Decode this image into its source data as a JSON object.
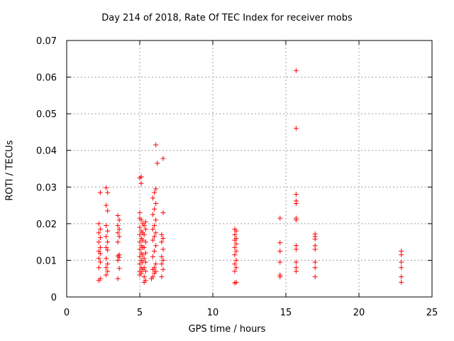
{
  "chart_data": {
    "type": "scatter",
    "title": "Day 214 of 2018, Rate Of TEC Index for receiver mobs",
    "xlabel": "GPS time / hours",
    "ylabel": "ROTI / TECUs",
    "xlim": [
      0,
      25
    ],
    "ylim": [
      0,
      0.07
    ],
    "xticks": [
      0,
      5,
      10,
      15,
      20,
      25
    ],
    "yticks": [
      0,
      0.01,
      0.02,
      0.03,
      0.04,
      0.05,
      0.06,
      0.07
    ],
    "xtick_labels": [
      "0",
      "5",
      "10",
      "15",
      "20",
      "25"
    ],
    "ytick_labels": [
      "0",
      "0.01",
      "0.02",
      "0.03",
      "0.04",
      "0.05",
      "0.06",
      "0.07"
    ],
    "grid": true,
    "marker": "plus",
    "marker_color": "#ff0000",
    "series": [
      {
        "points": [
          [
            2.2,
            0.0045
          ],
          [
            2.3,
            0.005
          ],
          [
            2.2,
            0.008
          ],
          [
            2.3,
            0.0095
          ],
          [
            2.2,
            0.0105
          ],
          [
            2.3,
            0.0118
          ],
          [
            2.2,
            0.0125
          ],
          [
            2.3,
            0.0135
          ],
          [
            2.2,
            0.015
          ],
          [
            2.3,
            0.0162
          ],
          [
            2.2,
            0.0175
          ],
          [
            2.3,
            0.0185
          ],
          [
            2.2,
            0.02
          ],
          [
            2.3,
            0.0285
          ],
          [
            2.7,
            0.006
          ],
          [
            2.8,
            0.007
          ],
          [
            2.7,
            0.008
          ],
          [
            2.8,
            0.009
          ],
          [
            2.7,
            0.0105
          ],
          [
            2.8,
            0.0128
          ],
          [
            2.7,
            0.0135
          ],
          [
            2.8,
            0.015
          ],
          [
            2.7,
            0.0165
          ],
          [
            2.8,
            0.018
          ],
          [
            2.7,
            0.0195
          ],
          [
            2.8,
            0.0235
          ],
          [
            2.7,
            0.025
          ],
          [
            2.8,
            0.0285
          ],
          [
            2.7,
            0.0298
          ],
          [
            3.5,
            0.005
          ],
          [
            3.6,
            0.0078
          ],
          [
            3.5,
            0.01
          ],
          [
            3.6,
            0.0108
          ],
          [
            3.5,
            0.0112
          ],
          [
            3.6,
            0.0115
          ],
          [
            3.5,
            0.015
          ],
          [
            3.6,
            0.0165
          ],
          [
            3.5,
            0.0175
          ],
          [
            3.6,
            0.0185
          ],
          [
            3.5,
            0.0195
          ],
          [
            3.6,
            0.021
          ],
          [
            3.5,
            0.0222
          ],
          [
            5.0,
            0.006
          ],
          [
            5.1,
            0.0065
          ],
          [
            5.0,
            0.007
          ],
          [
            5.2,
            0.0075
          ],
          [
            5.1,
            0.008
          ],
          [
            5.0,
            0.009
          ],
          [
            5.2,
            0.0095
          ],
          [
            5.1,
            0.01
          ],
          [
            5.0,
            0.011
          ],
          [
            5.2,
            0.0115
          ],
          [
            5.1,
            0.012
          ],
          [
            5.0,
            0.013
          ],
          [
            5.2,
            0.0135
          ],
          [
            5.1,
            0.014
          ],
          [
            5.0,
            0.015
          ],
          [
            5.2,
            0.0155
          ],
          [
            5.1,
            0.016
          ],
          [
            5.0,
            0.017
          ],
          [
            5.2,
            0.0175
          ],
          [
            5.1,
            0.018
          ],
          [
            5.0,
            0.019
          ],
          [
            5.2,
            0.02
          ],
          [
            5.1,
            0.021
          ],
          [
            5.0,
            0.0215
          ],
          [
            5.0,
            0.023
          ],
          [
            5.1,
            0.031
          ],
          [
            5.0,
            0.0325
          ],
          [
            5.1,
            0.0328
          ],
          [
            5.3,
            0.004
          ],
          [
            5.4,
            0.0045
          ],
          [
            5.3,
            0.0055
          ],
          [
            5.4,
            0.007
          ],
          [
            5.3,
            0.008
          ],
          [
            5.4,
            0.0095
          ],
          [
            5.3,
            0.0105
          ],
          [
            5.4,
            0.012
          ],
          [
            5.3,
            0.0135
          ],
          [
            5.4,
            0.015
          ],
          [
            5.3,
            0.017
          ],
          [
            5.4,
            0.0185
          ],
          [
            5.3,
            0.0195
          ],
          [
            5.4,
            0.0205
          ],
          [
            5.8,
            0.005
          ],
          [
            5.9,
            0.0055
          ],
          [
            6.0,
            0.0065
          ],
          [
            6.1,
            0.007
          ],
          [
            5.9,
            0.0075
          ],
          [
            6.0,
            0.008
          ],
          [
            6.1,
            0.009
          ],
          [
            5.9,
            0.011
          ],
          [
            6.0,
            0.0125
          ],
          [
            6.1,
            0.014
          ],
          [
            5.9,
            0.0155
          ],
          [
            6.0,
            0.0165
          ],
          [
            6.1,
            0.0175
          ],
          [
            5.9,
            0.0185
          ],
          [
            6.0,
            0.0195
          ],
          [
            6.1,
            0.021
          ],
          [
            5.9,
            0.0225
          ],
          [
            6.0,
            0.024
          ],
          [
            6.1,
            0.0255
          ],
          [
            5.9,
            0.027
          ],
          [
            6.0,
            0.0285
          ],
          [
            6.1,
            0.0295
          ],
          [
            6.1,
            0.0415
          ],
          [
            6.2,
            0.0365
          ],
          [
            6.5,
            0.0055
          ],
          [
            6.6,
            0.0075
          ],
          [
            6.5,
            0.009
          ],
          [
            6.6,
            0.01
          ],
          [
            6.5,
            0.011
          ],
          [
            6.6,
            0.013
          ],
          [
            6.5,
            0.015
          ],
          [
            6.6,
            0.016
          ],
          [
            6.5,
            0.017
          ],
          [
            6.6,
            0.023
          ],
          [
            6.6,
            0.0378
          ],
          [
            11.5,
            0.0038
          ],
          [
            11.6,
            0.004
          ],
          [
            11.5,
            0.007
          ],
          [
            11.6,
            0.008
          ],
          [
            11.5,
            0.009
          ],
          [
            11.6,
            0.01
          ],
          [
            11.5,
            0.0115
          ],
          [
            11.6,
            0.0125
          ],
          [
            11.5,
            0.0135
          ],
          [
            11.6,
            0.0145
          ],
          [
            11.5,
            0.0155
          ],
          [
            11.6,
            0.016
          ],
          [
            11.5,
            0.017
          ],
          [
            11.6,
            0.018
          ],
          [
            11.5,
            0.0185
          ],
          [
            14.6,
            0.0055
          ],
          [
            14.6,
            0.006
          ],
          [
            14.6,
            0.0095
          ],
          [
            14.6,
            0.0125
          ],
          [
            14.6,
            0.0148
          ],
          [
            14.6,
            0.0215
          ],
          [
            15.7,
            0.007
          ],
          [
            15.7,
            0.008
          ],
          [
            15.7,
            0.0095
          ],
          [
            15.7,
            0.013
          ],
          [
            15.7,
            0.014
          ],
          [
            15.7,
            0.021
          ],
          [
            15.7,
            0.0215
          ],
          [
            15.7,
            0.0255
          ],
          [
            15.7,
            0.0262
          ],
          [
            15.7,
            0.028
          ],
          [
            15.7,
            0.046
          ],
          [
            15.7,
            0.0618
          ],
          [
            17.0,
            0.0055
          ],
          [
            17.0,
            0.008
          ],
          [
            17.0,
            0.0095
          ],
          [
            17.0,
            0.013
          ],
          [
            17.0,
            0.014
          ],
          [
            17.0,
            0.0158
          ],
          [
            17.0,
            0.0165
          ],
          [
            17.0,
            0.0172
          ],
          [
            22.9,
            0.004
          ],
          [
            22.9,
            0.0055
          ],
          [
            22.9,
            0.008
          ],
          [
            22.9,
            0.0095
          ],
          [
            22.9,
            0.0115
          ],
          [
            22.9,
            0.0125
          ]
        ]
      }
    ]
  }
}
